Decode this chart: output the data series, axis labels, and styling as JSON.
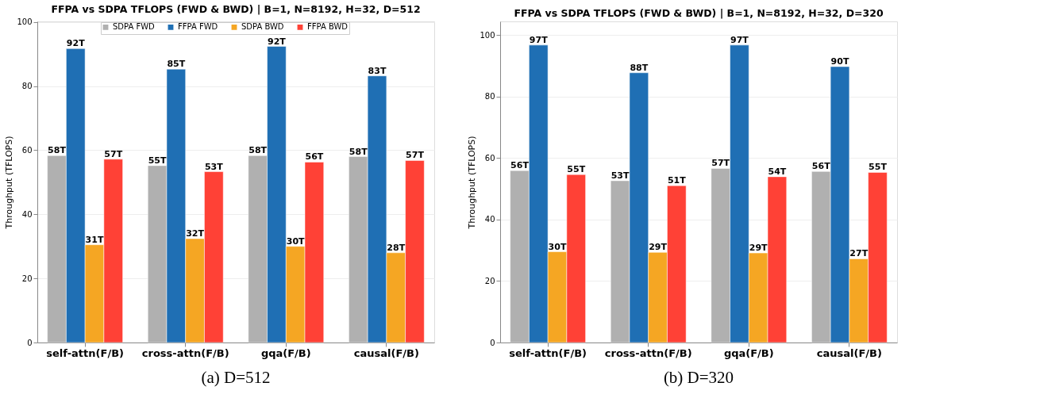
{
  "chart_data": [
    {
      "type": "bar",
      "title": "FFPA vs SDPA TFLOPS (FWD & BWD) | B=1, N=8192, H=32, D=512",
      "ylabel": "Throughput (TFLOPS)",
      "categories": [
        "self-attn(F/B)",
        "cross-attn(F/B)",
        "gqa(F/B)",
        "causal(F/B)"
      ],
      "series": [
        {
          "name": "SDPA FWD",
          "color": "#b0b0b0",
          "values": [
            58.3,
            55.2,
            58.3,
            58.0
          ],
          "value_labels": [
            "58T",
            "55T",
            "58T",
            "58T"
          ]
        },
        {
          "name": "FFPA FWD",
          "color": "#1f6fb4",
          "values": [
            91.7,
            85.3,
            92.4,
            83.2
          ],
          "value_labels": [
            "92T",
            "85T",
            "92T",
            "83T"
          ]
        },
        {
          "name": "SDPA BWD",
          "color": "#f5a623",
          "values": [
            30.5,
            32.4,
            30.0,
            28.0
          ],
          "value_labels": [
            "31T",
            "32T",
            "30T",
            "28T"
          ]
        },
        {
          "name": "FFPA BWD",
          "color": "#ff4136",
          "values": [
            57.2,
            53.3,
            56.3,
            56.8
          ],
          "value_labels": [
            "57T",
            "53T",
            "56T",
            "57T"
          ]
        }
      ],
      "ylim": [
        0,
        100.2
      ],
      "yticks": [
        0,
        20,
        40,
        60,
        80,
        100
      ],
      "grid": "y",
      "legend": "top",
      "annotations": [
        "(a) D=512"
      ]
    },
    {
      "type": "bar",
      "title": "FFPA vs SDPA TFLOPS (FWD & BWD) | B=1, N=8192, H=32, D=320",
      "ylabel": "Throughput (TFLOPS)",
      "categories": [
        "self-attn(F/B)",
        "cross-attn(F/B)",
        "gqa(F/B)",
        "causal(F/B)"
      ],
      "series": [
        {
          "name": "SDPA FWD",
          "color": "#b0b0b0",
          "values": [
            55.9,
            52.6,
            56.6,
            55.6
          ],
          "value_labels": [
            "56T",
            "53T",
            "57T",
            "56T"
          ]
        },
        {
          "name": "FFPA FWD",
          "color": "#1f6fb4",
          "values": [
            96.7,
            87.7,
            96.7,
            89.7
          ],
          "value_labels": [
            "97T",
            "88T",
            "97T",
            "90T"
          ]
        },
        {
          "name": "SDPA BWD",
          "color": "#f5a623",
          "values": [
            29.5,
            29.3,
            29.1,
            27.2
          ],
          "value_labels": [
            "30T",
            "29T",
            "29T",
            "27T"
          ]
        },
        {
          "name": "FFPA BWD",
          "color": "#ff4136",
          "values": [
            54.6,
            51.0,
            53.9,
            55.3
          ],
          "value_labels": [
            "55T",
            "51T",
            "54T",
            "55T"
          ]
        }
      ],
      "ylim": [
        0,
        104.4
      ],
      "yticks": [
        0,
        20,
        40,
        60,
        80,
        100
      ],
      "grid": "y",
      "legend": "top",
      "annotations": [
        "(b) D=320"
      ]
    }
  ]
}
